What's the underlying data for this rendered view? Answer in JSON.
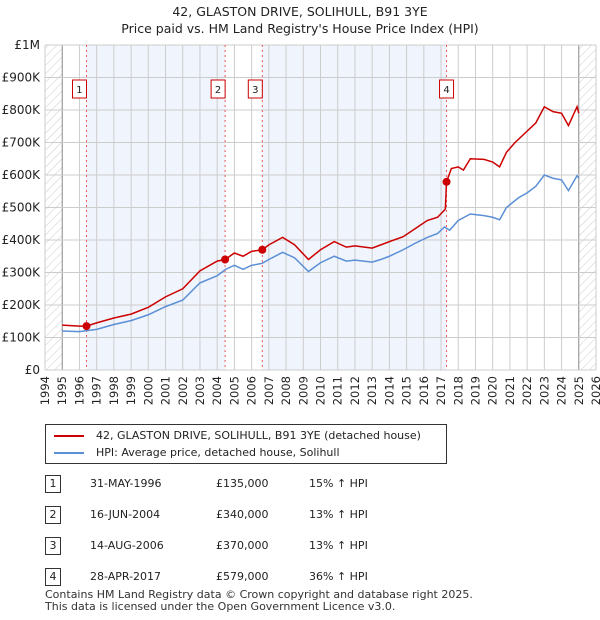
{
  "chart_data": {
    "type": "line",
    "title": "42, GLASTON DRIVE, SOLIHULL, B91 3YE",
    "subtitle": "Price paid vs. HM Land Registry's House Price Index (HPI)",
    "xlim": [
      1994,
      2026
    ],
    "ylim": [
      0,
      1000000
    ],
    "x_ticks": [
      "1994",
      "1995",
      "1996",
      "1997",
      "1998",
      "1999",
      "2000",
      "2001",
      "2002",
      "2003",
      "2004",
      "2005",
      "2006",
      "2007",
      "2008",
      "2009",
      "2010",
      "2011",
      "2012",
      "2013",
      "2014",
      "2015",
      "2016",
      "2017",
      "2018",
      "2019",
      "2020",
      "2021",
      "2022",
      "2023",
      "2024",
      "2025",
      "2026"
    ],
    "y_ticks": [
      {
        "v": 0,
        "l": "£0"
      },
      {
        "v": 100000,
        "l": "£100K"
      },
      {
        "v": 200000,
        "l": "£200K"
      },
      {
        "v": 300000,
        "l": "£300K"
      },
      {
        "v": 400000,
        "l": "£400K"
      },
      {
        "v": 500000,
        "l": "£500K"
      },
      {
        "v": 600000,
        "l": "£600K"
      },
      {
        "v": 700000,
        "l": "£700K"
      },
      {
        "v": 800000,
        "l": "£800K"
      },
      {
        "v": 900000,
        "l": "£900K"
      },
      {
        "v": 1000000,
        "l": "£1M"
      }
    ],
    "grid": true,
    "series": [
      {
        "name": "42, GLASTON DRIVE, SOLIHULL, B91 3YE (detached house)",
        "color": "#cc0000",
        "x": [
          1995,
          1996,
          1996.41,
          1997,
          1998,
          1999,
          2000,
          2001,
          2002,
          2003,
          2004,
          2004.46,
          2005,
          2005.5,
          2006,
          2006.62,
          2007,
          2007.8,
          2008.5,
          2009.3,
          2010,
          2010.8,
          2011.5,
          2012,
          2013,
          2013.5,
          2014,
          2014.8,
          2015.5,
          2016.2,
          2016.8,
          2017.25,
          2017.32,
          2017.6,
          2018,
          2018.3,
          2018.7,
          2019.5,
          2020,
          2020.4,
          2020.8,
          2021.3,
          2022,
          2022.5,
          2023,
          2023.5,
          2024,
          2024.4,
          2024.9,
          2025
        ],
        "y": [
          138000,
          135000,
          135000,
          145000,
          160000,
          172000,
          193000,
          225000,
          250000,
          305000,
          335000,
          340000,
          360000,
          350000,
          365000,
          370000,
          385000,
          408000,
          385000,
          340000,
          370000,
          395000,
          378000,
          382000,
          375000,
          385000,
          395000,
          410000,
          435000,
          460000,
          470000,
          495000,
          579000,
          620000,
          625000,
          615000,
          650000,
          648000,
          640000,
          625000,
          670000,
          700000,
          735000,
          760000,
          810000,
          795000,
          790000,
          752000,
          810000,
          790000
        ]
      },
      {
        "name": "HPI: Average price, detached house, Solihull",
        "color": "#5b8fd6",
        "x": [
          1995,
          1996,
          1997,
          1998,
          1999,
          2000,
          2001,
          2002,
          2003,
          2004,
          2004.5,
          2005,
          2005.5,
          2006,
          2006.6,
          2007,
          2007.8,
          2008.5,
          2009.3,
          2010,
          2010.8,
          2011.5,
          2012,
          2013,
          2013.5,
          2014,
          2014.8,
          2015.5,
          2016.2,
          2016.8,
          2017.2,
          2017.5,
          2018,
          2018.7,
          2019.5,
          2020,
          2020.4,
          2020.8,
          2021.5,
          2022,
          2022.5,
          2023,
          2023.5,
          2024,
          2024.4,
          2024.9,
          2025
        ],
        "y": [
          120000,
          118000,
          125000,
          140000,
          152000,
          170000,
          195000,
          215000,
          268000,
          290000,
          310000,
          322000,
          310000,
          322000,
          328000,
          340000,
          362000,
          345000,
          303000,
          330000,
          350000,
          335000,
          338000,
          332000,
          340000,
          350000,
          370000,
          390000,
          408000,
          420000,
          440000,
          430000,
          460000,
          480000,
          475000,
          470000,
          462000,
          500000,
          530000,
          545000,
          565000,
          600000,
          590000,
          585000,
          552000,
          598000,
          590000
        ]
      }
    ],
    "sales": [
      {
        "n": "1",
        "x": 1996.41,
        "y": 135000,
        "date": "31-MAY-1996",
        "price": "£135,000",
        "hpi": "15% ↑ HPI"
      },
      {
        "n": "2",
        "x": 2004.46,
        "y": 340000,
        "date": "16-JUN-2004",
        "price": "£340,000",
        "hpi": "13% ↑ HPI"
      },
      {
        "n": "3",
        "x": 2006.62,
        "y": 370000,
        "date": "14-AUG-2006",
        "price": "£370,000",
        "hpi": "13% ↑ HPI"
      },
      {
        "n": "4",
        "x": 2017.32,
        "y": 579000,
        "date": "28-APR-2017",
        "price": "£579,000",
        "hpi": "36% ↑ HPI"
      }
    ],
    "legend_position": "below"
  },
  "footer": [
    "Contains HM Land Registry data © Crown copyright and database right 2025.",
    "This data is licensed under the Open Government Licence v3.0."
  ]
}
